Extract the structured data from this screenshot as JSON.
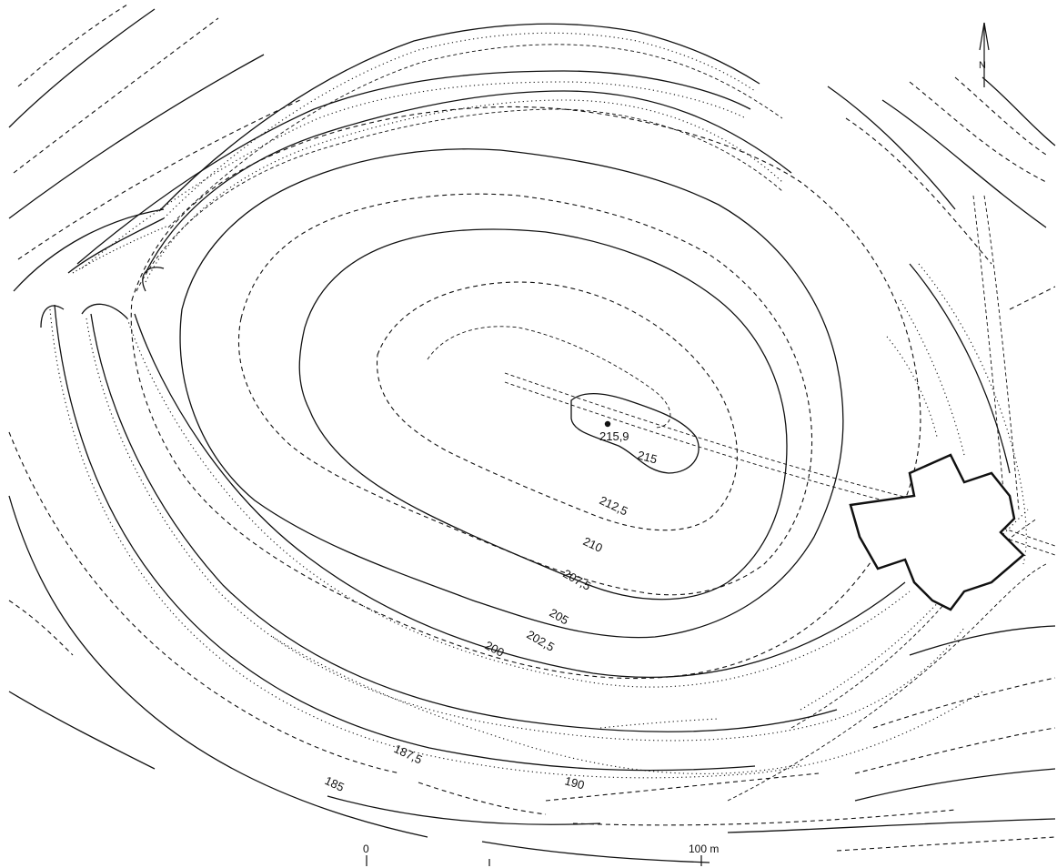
{
  "map": {
    "spot_height": "215,9",
    "contour_labels": {
      "c215": "215",
      "c212_5": "212,5",
      "c210": "210",
      "c207_5": "207,5",
      "c205": "205",
      "c202_5": "202,5",
      "c200": "200",
      "c190": "190",
      "c187_5": "187,5",
      "c185": "185"
    },
    "north_label": "N",
    "scale": {
      "start_label": "0",
      "end_label": "100 m"
    }
  }
}
